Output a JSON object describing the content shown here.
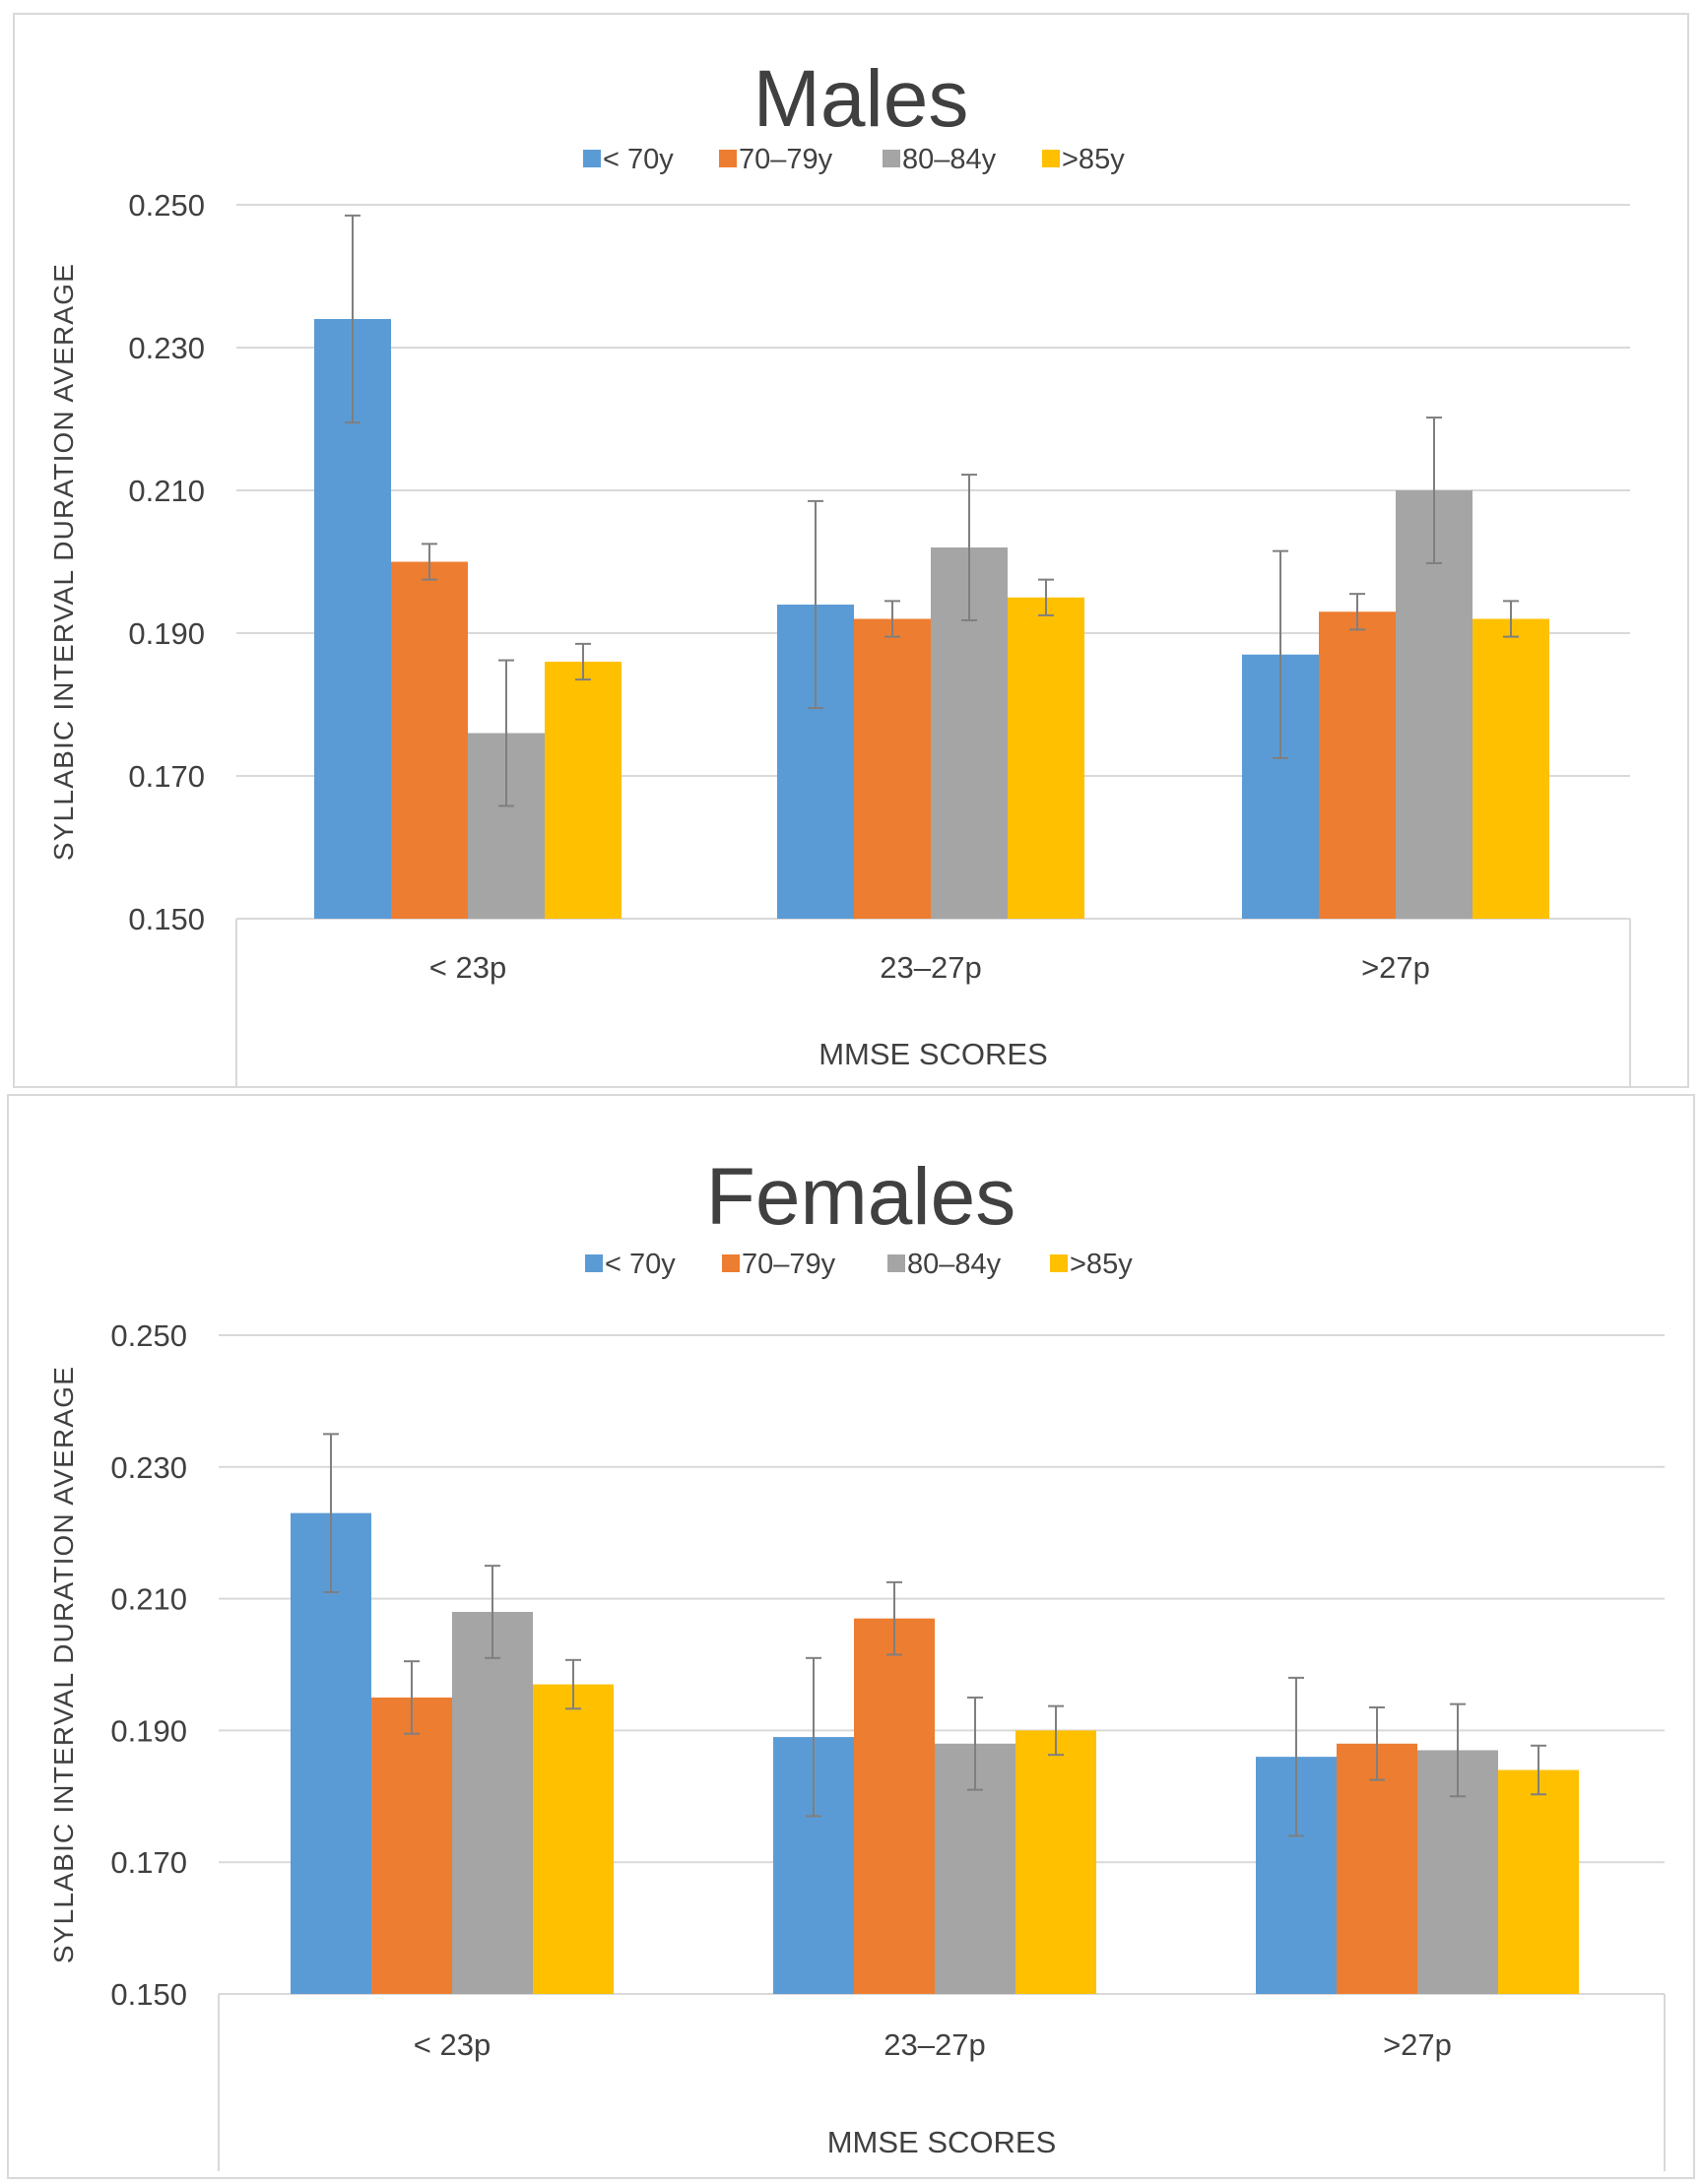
{
  "colors": {
    "lt70": "#5b9bd5",
    "y70_79": "#ed7d31",
    "y80_84": "#a5a5a5",
    "gt85": "#ffc000",
    "gridline": "#d9d9d9",
    "axis_text": "#404040",
    "error_bar": "#7f7f7f"
  },
  "chart_data": [
    {
      "type": "bar",
      "title": "Males",
      "xlabel": "MMSE SCORES",
      "ylabel": "SYLLABIC INTERVAL DURATION AVERAGE",
      "ylim": [
        0.15,
        0.25
      ],
      "yticks": [
        "0.150",
        "0.170",
        "0.190",
        "0.210",
        "0.230",
        "0.250"
      ],
      "legend_position": "top",
      "categories": [
        "< 23p",
        "23–27p",
        ">27p"
      ],
      "series": [
        {
          "name": "< 70y",
          "color_key": "lt70",
          "values": [
            0.234,
            0.194,
            0.187
          ],
          "errors": [
            0.0145,
            0.0145,
            0.0145
          ]
        },
        {
          "name": "70–79y",
          "color_key": "y70_79",
          "values": [
            0.2,
            0.192,
            0.193
          ],
          "errors": [
            0.0025,
            0.0025,
            0.0025
          ]
        },
        {
          "name": "80–84y",
          "color_key": "y80_84",
          "values": [
            0.176,
            0.202,
            0.21
          ],
          "errors": [
            0.0102,
            0.0102,
            0.0102
          ]
        },
        {
          "name": ">85y",
          "color_key": "gt85",
          "values": [
            0.186,
            0.195,
            0.192
          ],
          "errors": [
            0.0025,
            0.0025,
            0.0025
          ]
        }
      ]
    },
    {
      "type": "bar",
      "title": "Females",
      "xlabel": "MMSE SCORES",
      "ylabel": "SYLLABIC INTERVAL DURATION AVERAGE",
      "ylim": [
        0.15,
        0.25
      ],
      "yticks": [
        "0.150",
        "0.170",
        "0.190",
        "0.210",
        "0.230",
        "0.250"
      ],
      "legend_position": "top",
      "categories": [
        "< 23p",
        "23–27p",
        ">27p"
      ],
      "series": [
        {
          "name": "< 70y",
          "color_key": "lt70",
          "values": [
            0.223,
            0.189,
            0.186
          ],
          "errors": [
            0.012,
            0.012,
            0.012
          ]
        },
        {
          "name": "70–79y",
          "color_key": "y70_79",
          "values": [
            0.195,
            0.207,
            0.188
          ],
          "errors": [
            0.0055,
            0.0055,
            0.0055
          ]
        },
        {
          "name": "80–84y",
          "color_key": "y80_84",
          "values": [
            0.208,
            0.188,
            0.187
          ],
          "errors": [
            0.007,
            0.007,
            0.007
          ]
        },
        {
          "name": ">85y",
          "color_key": "gt85",
          "values": [
            0.197,
            0.19,
            0.184
          ],
          "errors": [
            0.0037,
            0.0037,
            0.0037
          ]
        }
      ]
    }
  ]
}
